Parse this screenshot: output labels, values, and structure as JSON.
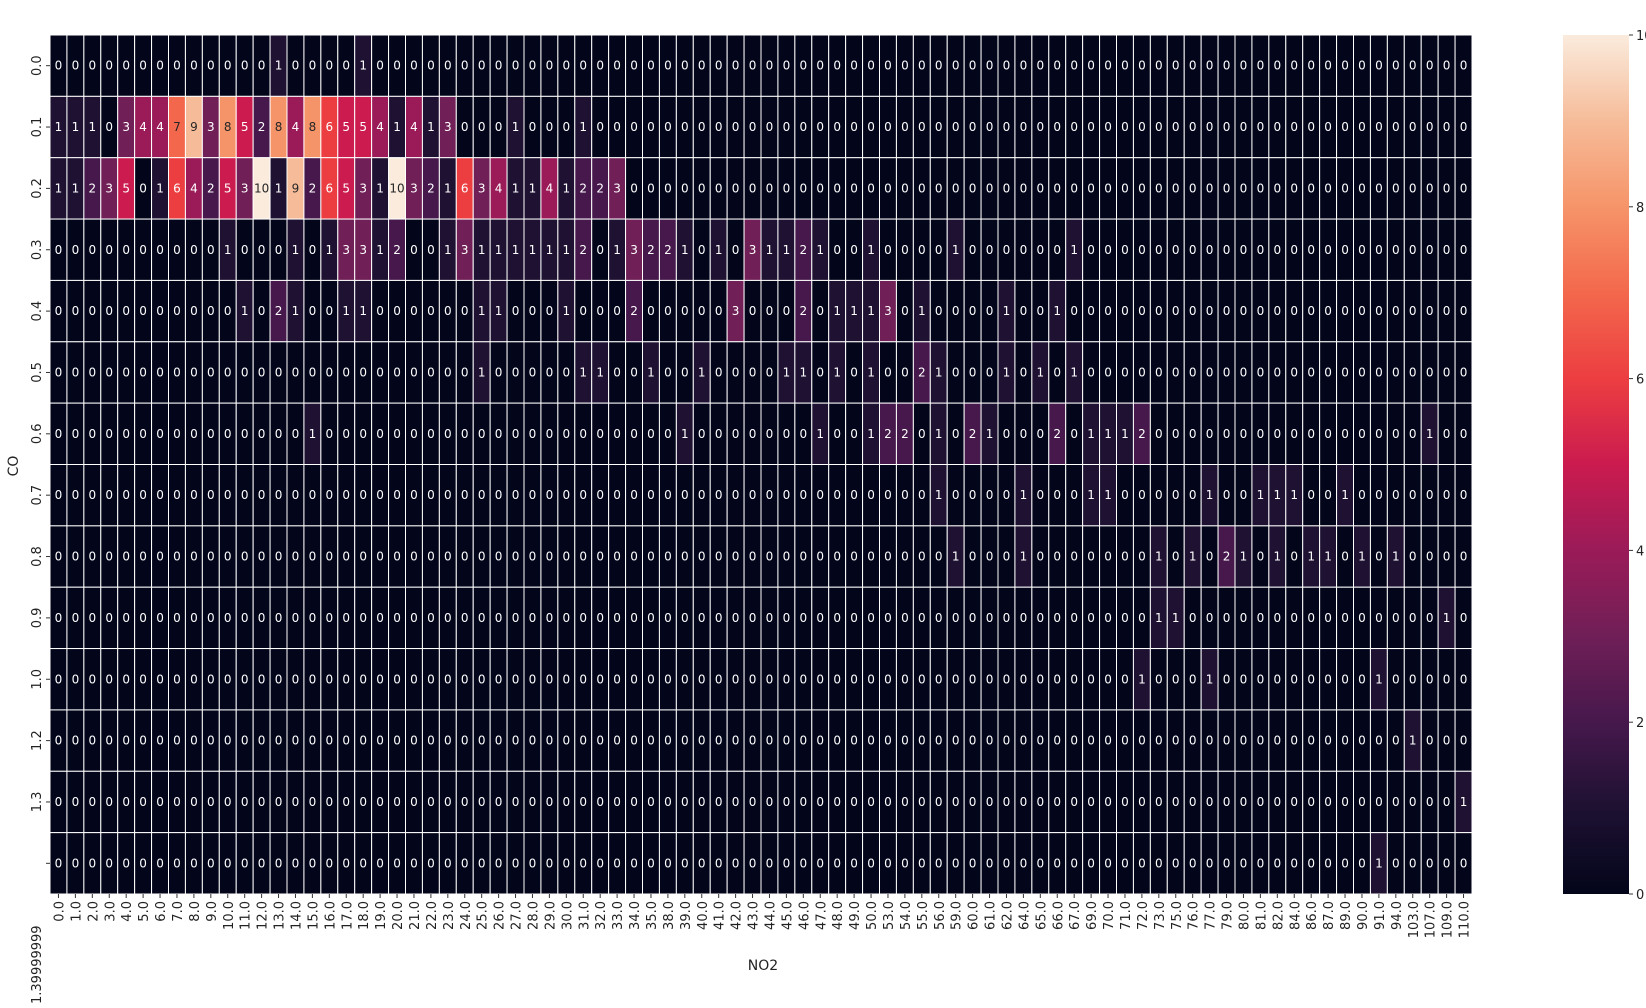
{
  "chart_data": {
    "type": "heatmap",
    "title": "",
    "xlabel": "NO2",
    "ylabel": "CO",
    "x_categories": [
      "0.0",
      "1.0",
      "2.0",
      "3.0",
      "4.0",
      "5.0",
      "6.0",
      "7.0",
      "8.0",
      "9.0",
      "10.0",
      "11.0",
      "12.0",
      "13.0",
      "14.0",
      "15.0",
      "16.0",
      "17.0",
      "18.0",
      "19.0",
      "20.0",
      "21.0",
      "22.0",
      "23.0",
      "24.0",
      "25.0",
      "26.0",
      "27.0",
      "28.0",
      "29.0",
      "30.0",
      "31.0",
      "32.0",
      "33.0",
      "34.0",
      "35.0",
      "38.0",
      "39.0",
      "40.0",
      "41.0",
      "42.0",
      "43.0",
      "44.0",
      "45.0",
      "46.0",
      "47.0",
      "48.0",
      "49.0",
      "50.0",
      "53.0",
      "54.0",
      "55.0",
      "56.0",
      "59.0",
      "60.0",
      "61.0",
      "62.0",
      "64.0",
      "65.0",
      "66.0",
      "67.0",
      "69.0",
      "70.0",
      "71.0",
      "72.0",
      "73.0",
      "75.0",
      "76.0",
      "77.0",
      "79.0",
      "80.0",
      "81.0",
      "82.0",
      "84.0",
      "86.0",
      "87.0",
      "89.0",
      "90.0",
      "91.0",
      "94.0",
      "103.0",
      "107.0",
      "109.0",
      "110.0"
    ],
    "y_categories": [
      "0.0",
      "0.1",
      "0.2",
      "0.3",
      "0.4",
      "0.5",
      "0.6",
      "0.7",
      "0.8",
      "0.9",
      "1.0",
      "1.2",
      "1.3",
      "1.39999999"
    ],
    "values": [
      [
        0,
        0,
        0,
        0,
        0,
        0,
        0,
        0,
        0,
        0,
        0,
        0,
        0,
        1,
        0,
        0,
        0,
        0,
        1,
        0,
        0,
        0,
        0,
        0,
        0,
        0,
        0,
        0,
        0,
        0,
        0,
        0,
        0,
        0,
        0,
        0,
        0,
        0,
        0,
        0,
        0,
        0,
        0,
        0,
        0,
        0,
        0,
        0,
        0,
        0,
        0,
        0,
        0,
        0,
        0,
        0,
        0,
        0,
        0,
        0,
        0,
        0,
        0,
        0,
        0,
        0,
        0,
        0,
        0,
        0,
        0,
        0,
        0,
        0,
        0,
        0,
        0,
        0,
        0,
        0,
        0,
        0,
        0,
        0
      ],
      [
        1,
        1,
        1,
        0,
        3,
        4,
        4,
        7,
        9,
        3,
        8,
        5,
        2,
        8,
        4,
        8,
        6,
        5,
        5,
        4,
        1,
        4,
        1,
        3,
        0,
        0,
        0,
        1,
        0,
        0,
        0,
        1,
        0,
        0,
        0,
        0,
        0,
        0,
        0,
        0,
        0,
        0,
        0,
        0,
        0,
        0,
        0,
        0,
        0,
        0,
        0,
        0,
        0,
        0,
        0,
        0,
        0,
        0,
        0,
        0,
        0,
        0,
        0,
        0,
        0,
        0,
        0,
        0,
        0,
        0,
        0,
        0,
        0,
        0,
        0,
        0,
        0,
        0,
        0,
        0,
        0,
        0,
        0,
        0
      ],
      [
        1,
        1,
        2,
        3,
        5,
        0,
        1,
        6,
        4,
        2,
        5,
        3,
        10,
        1,
        9,
        2,
        6,
        5,
        3,
        1,
        10,
        3,
        2,
        1,
        6,
        3,
        4,
        1,
        1,
        4,
        1,
        2,
        2,
        3,
        0,
        0,
        0,
        0,
        0,
        0,
        0,
        0,
        0,
        0,
        0,
        0,
        0,
        0,
        0,
        0,
        0,
        0,
        0,
        0,
        0,
        0,
        0,
        0,
        0,
        0,
        0,
        0,
        0,
        0,
        0,
        0,
        0,
        0,
        0,
        0,
        0,
        0,
        0,
        0,
        0,
        0,
        0,
        0,
        0,
        0,
        0,
        0,
        0,
        0
      ],
      [
        0,
        0,
        0,
        0,
        0,
        0,
        0,
        0,
        0,
        0,
        1,
        0,
        0,
        0,
        1,
        0,
        1,
        3,
        3,
        1,
        2,
        0,
        0,
        1,
        3,
        1,
        1,
        1,
        1,
        1,
        1,
        2,
        0,
        1,
        3,
        2,
        2,
        1,
        0,
        1,
        0,
        3,
        1,
        1,
        2,
        1,
        0,
        0,
        1,
        0,
        0,
        0,
        0,
        1,
        0,
        0,
        0,
        0,
        0,
        0,
        1,
        0,
        0,
        0,
        0,
        0,
        0,
        0,
        0,
        0,
        0,
        0,
        0,
        0,
        0,
        0,
        0,
        0,
        0,
        0,
        0,
        0,
        0,
        0
      ],
      [
        0,
        0,
        0,
        0,
        0,
        0,
        0,
        0,
        0,
        0,
        0,
        1,
        0,
        2,
        1,
        0,
        0,
        1,
        1,
        0,
        0,
        0,
        0,
        0,
        0,
        1,
        1,
        0,
        0,
        0,
        1,
        0,
        0,
        0,
        2,
        0,
        0,
        0,
        0,
        0,
        3,
        0,
        0,
        0,
        2,
        0,
        1,
        1,
        1,
        3,
        0,
        1,
        0,
        0,
        0,
        0,
        1,
        0,
        0,
        1,
        0,
        0,
        0,
        0,
        0,
        0,
        0,
        0,
        0,
        0,
        0,
        0,
        0,
        0,
        0,
        0,
        0,
        0,
        0,
        0,
        0,
        0,
        0,
        0
      ],
      [
        0,
        0,
        0,
        0,
        0,
        0,
        0,
        0,
        0,
        0,
        0,
        0,
        0,
        0,
        0,
        0,
        0,
        0,
        0,
        0,
        0,
        0,
        0,
        0,
        0,
        1,
        0,
        0,
        0,
        0,
        0,
        1,
        1,
        0,
        0,
        1,
        0,
        0,
        1,
        0,
        0,
        0,
        0,
        1,
        1,
        0,
        1,
        0,
        1,
        0,
        0,
        2,
        1,
        0,
        0,
        0,
        1,
        0,
        1,
        0,
        1,
        0,
        0,
        0,
        0,
        0,
        0,
        0,
        0,
        0,
        0,
        0,
        0,
        0,
        0,
        0,
        0,
        0,
        0,
        0,
        0,
        0,
        0,
        0
      ],
      [
        0,
        0,
        0,
        0,
        0,
        0,
        0,
        0,
        0,
        0,
        0,
        0,
        0,
        0,
        0,
        1,
        0,
        0,
        0,
        0,
        0,
        0,
        0,
        0,
        0,
        0,
        0,
        0,
        0,
        0,
        0,
        0,
        0,
        0,
        0,
        0,
        0,
        1,
        0,
        0,
        0,
        0,
        0,
        0,
        0,
        1,
        0,
        0,
        1,
        2,
        2,
        0,
        1,
        0,
        2,
        1,
        0,
        0,
        0,
        2,
        0,
        1,
        1,
        1,
        2,
        0,
        0,
        0,
        0,
        0,
        0,
        0,
        0,
        0,
        0,
        0,
        0,
        0,
        0,
        0,
        0,
        1,
        0,
        0
      ],
      [
        0,
        0,
        0,
        0,
        0,
        0,
        0,
        0,
        0,
        0,
        0,
        0,
        0,
        0,
        0,
        0,
        0,
        0,
        0,
        0,
        0,
        0,
        0,
        0,
        0,
        0,
        0,
        0,
        0,
        0,
        0,
        0,
        0,
        0,
        0,
        0,
        0,
        0,
        0,
        0,
        0,
        0,
        0,
        0,
        0,
        0,
        0,
        0,
        0,
        0,
        0,
        0,
        1,
        0,
        0,
        0,
        0,
        1,
        0,
        0,
        0,
        1,
        1,
        0,
        0,
        0,
        0,
        0,
        1,
        0,
        0,
        1,
        1,
        1,
        0,
        0,
        1,
        0,
        0,
        0,
        0,
        0,
        0,
        0
      ],
      [
        0,
        0,
        0,
        0,
        0,
        0,
        0,
        0,
        0,
        0,
        0,
        0,
        0,
        0,
        0,
        0,
        0,
        0,
        0,
        0,
        0,
        0,
        0,
        0,
        0,
        0,
        0,
        0,
        0,
        0,
        0,
        0,
        0,
        0,
        0,
        0,
        0,
        0,
        0,
        0,
        0,
        0,
        0,
        0,
        0,
        0,
        0,
        0,
        0,
        0,
        0,
        0,
        0,
        1,
        0,
        0,
        0,
        1,
        0,
        0,
        0,
        0,
        0,
        0,
        0,
        1,
        0,
        1,
        0,
        2,
        1,
        0,
        1,
        0,
        1,
        1,
        0,
        1,
        0,
        1,
        0,
        0,
        0,
        0
      ],
      [
        0,
        0,
        0,
        0,
        0,
        0,
        0,
        0,
        0,
        0,
        0,
        0,
        0,
        0,
        0,
        0,
        0,
        0,
        0,
        0,
        0,
        0,
        0,
        0,
        0,
        0,
        0,
        0,
        0,
        0,
        0,
        0,
        0,
        0,
        0,
        0,
        0,
        0,
        0,
        0,
        0,
        0,
        0,
        0,
        0,
        0,
        0,
        0,
        0,
        0,
        0,
        0,
        0,
        0,
        0,
        0,
        0,
        0,
        0,
        0,
        0,
        0,
        0,
        0,
        0,
        1,
        1,
        0,
        0,
        0,
        0,
        0,
        0,
        0,
        0,
        0,
        0,
        0,
        0,
        0,
        0,
        0,
        1,
        0
      ],
      [
        0,
        0,
        0,
        0,
        0,
        0,
        0,
        0,
        0,
        0,
        0,
        0,
        0,
        0,
        0,
        0,
        0,
        0,
        0,
        0,
        0,
        0,
        0,
        0,
        0,
        0,
        0,
        0,
        0,
        0,
        0,
        0,
        0,
        0,
        0,
        0,
        0,
        0,
        0,
        0,
        0,
        0,
        0,
        0,
        0,
        0,
        0,
        0,
        0,
        0,
        0,
        0,
        0,
        0,
        0,
        0,
        0,
        0,
        0,
        0,
        0,
        0,
        0,
        0,
        1,
        0,
        0,
        0,
        1,
        0,
        0,
        0,
        0,
        0,
        0,
        0,
        0,
        0,
        1,
        0,
        0,
        0,
        0,
        0
      ],
      [
        0,
        0,
        0,
        0,
        0,
        0,
        0,
        0,
        0,
        0,
        0,
        0,
        0,
        0,
        0,
        0,
        0,
        0,
        0,
        0,
        0,
        0,
        0,
        0,
        0,
        0,
        0,
        0,
        0,
        0,
        0,
        0,
        0,
        0,
        0,
        0,
        0,
        0,
        0,
        0,
        0,
        0,
        0,
        0,
        0,
        0,
        0,
        0,
        0,
        0,
        0,
        0,
        0,
        0,
        0,
        0,
        0,
        0,
        0,
        0,
        0,
        0,
        0,
        0,
        0,
        0,
        0,
        0,
        0,
        0,
        0,
        0,
        0,
        0,
        0,
        0,
        0,
        0,
        0,
        0,
        1,
        0,
        0,
        0
      ],
      [
        0,
        0,
        0,
        0,
        0,
        0,
        0,
        0,
        0,
        0,
        0,
        0,
        0,
        0,
        0,
        0,
        0,
        0,
        0,
        0,
        0,
        0,
        0,
        0,
        0,
        0,
        0,
        0,
        0,
        0,
        0,
        0,
        0,
        0,
        0,
        0,
        0,
        0,
        0,
        0,
        0,
        0,
        0,
        0,
        0,
        0,
        0,
        0,
        0,
        0,
        0,
        0,
        0,
        0,
        0,
        0,
        0,
        0,
        0,
        0,
        0,
        0,
        0,
        0,
        0,
        0,
        0,
        0,
        0,
        0,
        0,
        0,
        0,
        0,
        0,
        0,
        0,
        0,
        0,
        0,
        0,
        0,
        0,
        1
      ],
      [
        0,
        0,
        0,
        0,
        0,
        0,
        0,
        0,
        0,
        0,
        0,
        0,
        0,
        0,
        0,
        0,
        0,
        0,
        0,
        0,
        0,
        0,
        0,
        0,
        0,
        0,
        0,
        0,
        0,
        0,
        0,
        0,
        0,
        0,
        0,
        0,
        0,
        0,
        0,
        0,
        0,
        0,
        0,
        0,
        0,
        0,
        0,
        0,
        0,
        0,
        0,
        0,
        0,
        0,
        0,
        0,
        0,
        0,
        0,
        0,
        0,
        0,
        0,
        0,
        0,
        0,
        0,
        0,
        0,
        0,
        0,
        0,
        0,
        0,
        0,
        0,
        0,
        0,
        1,
        0,
        0,
        0,
        0,
        0
      ]
    ],
    "colorbar": {
      "min": 0,
      "max": 10,
      "ticks": [
        "0",
        "2",
        "4",
        "6",
        "8",
        "10"
      ]
    },
    "colormap": "rocket",
    "annotated": true,
    "cell_border_color": "#ffffff",
    "grid": false,
    "legend": "colorbar-right"
  }
}
